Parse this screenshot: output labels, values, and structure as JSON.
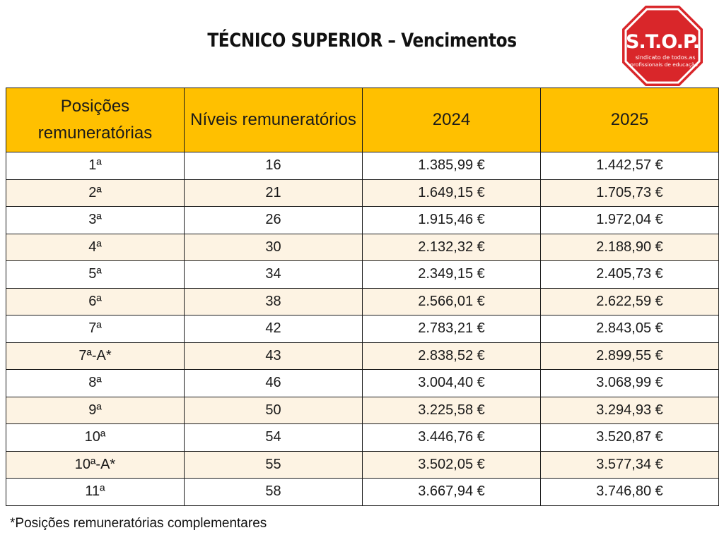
{
  "title": "TÉCNICO SUPERIOR – Vencimentos",
  "logo": {
    "main_text": "S.T.O.P.",
    "sub_line1": "sindicato de todos.as",
    "sub_line2": "profissionais de educação",
    "color": "#d9262a"
  },
  "table": {
    "headers": [
      "Posições remuneratórias",
      "Níveis remuneratórios",
      "2024",
      "2025"
    ],
    "header_color": "#ffc000",
    "alt_row_color": "#fdf3e3",
    "rows": [
      [
        "1ª",
        "16",
        "1.385,99 €",
        "1.442,57 €"
      ],
      [
        "2ª",
        "21",
        "1.649,15 €",
        "1.705,73 €"
      ],
      [
        "3ª",
        "26",
        "1.915,46 €",
        "1.972,04 €"
      ],
      [
        "4ª",
        "30",
        "2.132,32 €",
        "2.188,90 €"
      ],
      [
        "5ª",
        "34",
        "2.349,15 €",
        "2.405,73 €"
      ],
      [
        "6ª",
        "38",
        "2.566,01 €",
        "2.622,59 €"
      ],
      [
        "7ª",
        "42",
        "2.783,21 €",
        "2.843,05 €"
      ],
      [
        "7ª-A*",
        "43",
        "2.838,52 €",
        "2.899,55 €"
      ],
      [
        "8ª",
        "46",
        "3.004,40 €",
        "3.068,99 €"
      ],
      [
        "9ª",
        "50",
        "3.225,58 €",
        "3.294,93 €"
      ],
      [
        "10ª",
        "54",
        "3.446,76 €",
        "3.520,87 €"
      ],
      [
        "10ª-A*",
        "55",
        "3.502,05 €",
        "3.577,34 €"
      ],
      [
        "11ª",
        "58",
        "3.667,94 €",
        "3.746,80 €"
      ]
    ]
  },
  "footnote": "*Posições remuneratórias complementares"
}
